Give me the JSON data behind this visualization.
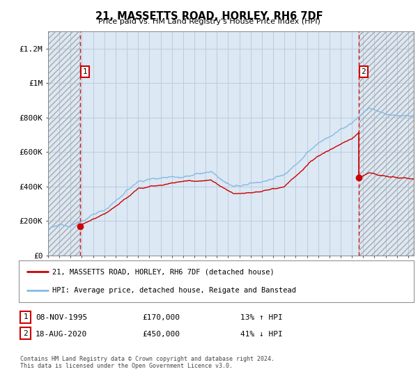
{
  "title": "21, MASSETTS ROAD, HORLEY, RH6 7DF",
  "subtitle": "Price paid vs. HM Land Registry's House Price Index (HPI)",
  "ylabel_ticks": [
    "£0",
    "£200K",
    "£400K",
    "£600K",
    "£800K",
    "£1M",
    "£1.2M"
  ],
  "ylim": [
    0,
    1300000
  ],
  "xlim_start": 1993.0,
  "xlim_end": 2025.5,
  "sale1_year": 1995.86,
  "sale1_price": 170000,
  "sale2_year": 2020.63,
  "sale2_price": 450000,
  "red_color": "#cc0000",
  "blue_color": "#88bbe0",
  "grid_color": "#bbccdd",
  "background_color": "#ffffff",
  "plot_bg_color": "#dce8f4",
  "hatch_color": "#aaaaaa",
  "legend_entry1": "21, MASSETTS ROAD, HORLEY, RH6 7DF (detached house)",
  "legend_entry2": "HPI: Average price, detached house, Reigate and Banstead",
  "table_row1": [
    "1",
    "08-NOV-1995",
    "£170,000",
    "13% ↑ HPI"
  ],
  "table_row2": [
    "2",
    "18-AUG-2020",
    "£450,000",
    "41% ↓ HPI"
  ],
  "footer": "Contains HM Land Registry data © Crown copyright and database right 2024.\nThis data is licensed under the Open Government Licence v3.0.",
  "hpi_seed": 12345,
  "hpi_base": 145000,
  "hpi_noise_scale": 5000,
  "num_points": 800
}
